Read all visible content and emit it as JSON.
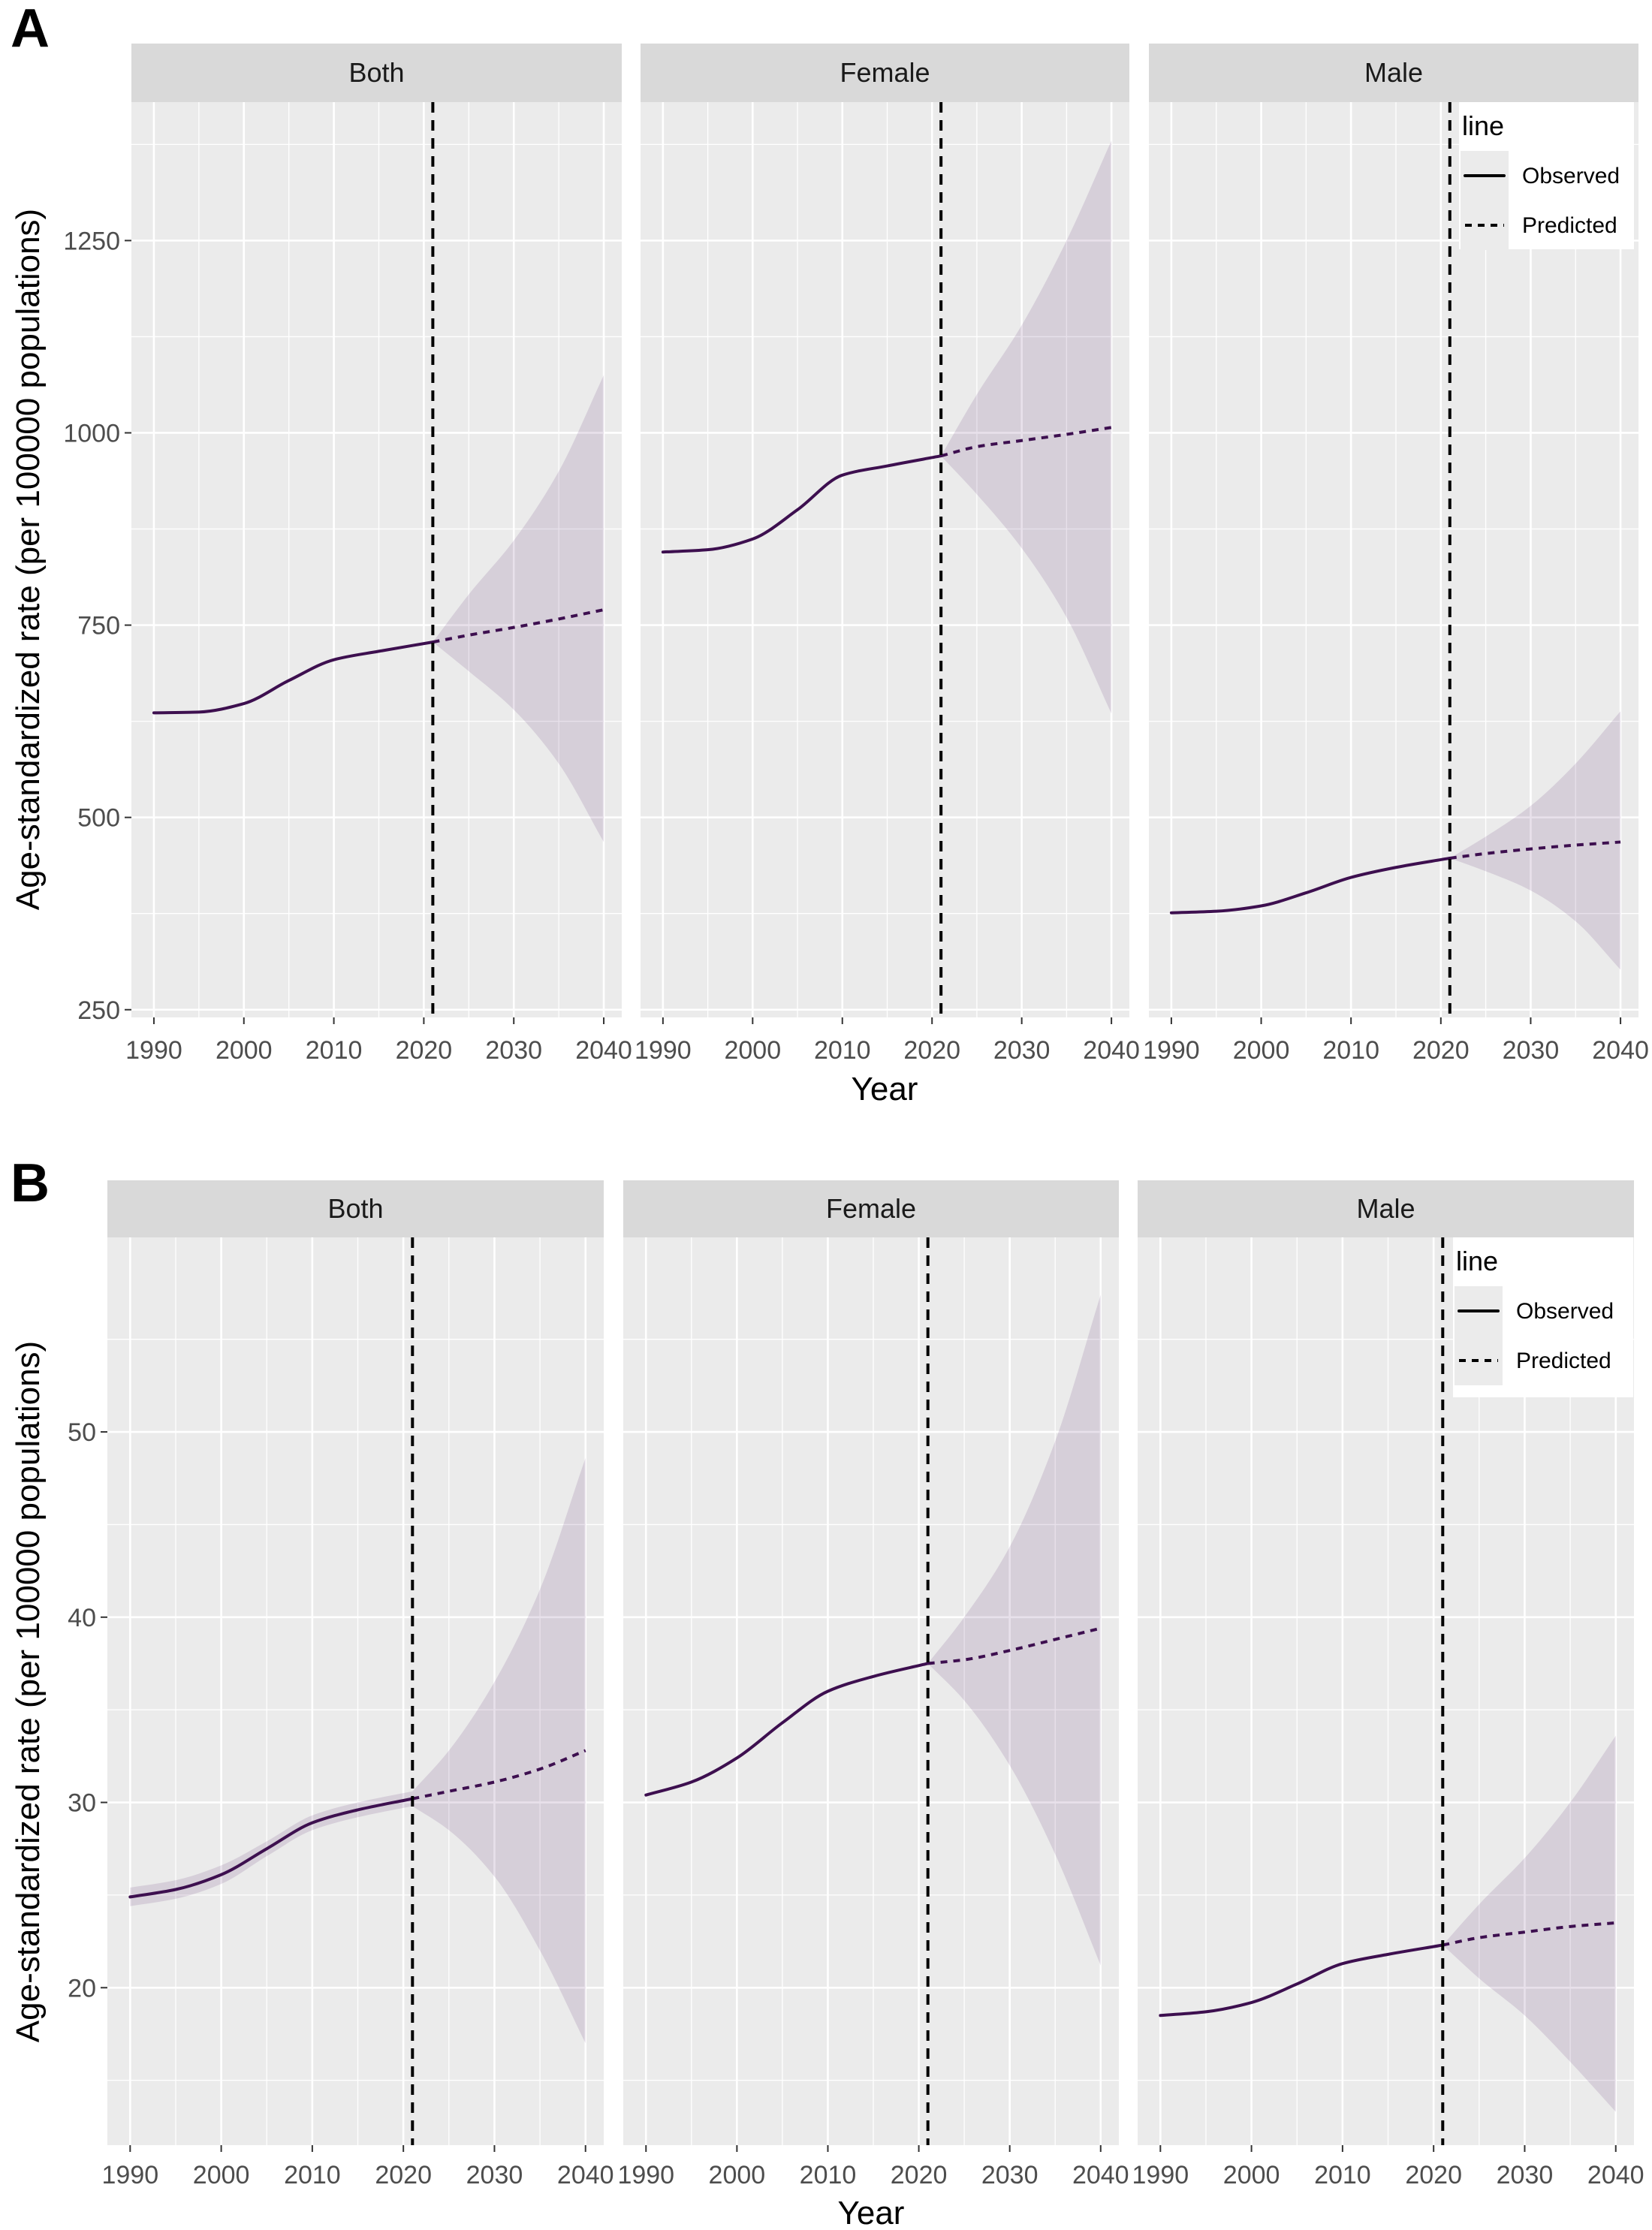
{
  "chart_data": [
    {
      "panel_label": "A",
      "type": "line",
      "xlabel": "Year",
      "ylabel": "Age-standardized rate (per 100000 populations)",
      "xlim": [
        1987.5,
        2042
      ],
      "ylim": [
        240,
        1430
      ],
      "xticks": [
        1990,
        2000,
        2010,
        2020,
        2030,
        2040
      ],
      "yticks": [
        250,
        500,
        750,
        1000,
        1250
      ],
      "reference_line_x": 2021,
      "legend": {
        "title": "line",
        "position": "top-right",
        "entries": [
          "Observed",
          "Predicted"
        ]
      },
      "facets": [
        {
          "name": "Both",
          "observed": {
            "x": [
              1990,
              1995,
              2000,
              2005,
              2010,
              2015,
              2021
            ],
            "y": [
              636,
              637,
              648,
              678,
              705,
              716,
              728
            ]
          },
          "predicted": {
            "x": [
              2021,
              2025,
              2030,
              2035,
              2040
            ],
            "y": [
              728,
              737,
              747,
              758,
              770
            ]
          },
          "band_upper": {
            "x": [
              2021,
              2025,
              2030,
              2035,
              2040
            ],
            "y": [
              728,
              790,
              860,
              950,
              1075
            ]
          },
          "band_lower": {
            "x": [
              2021,
              2025,
              2030,
              2035,
              2040
            ],
            "y": [
              728,
              690,
              640,
              570,
              468
            ]
          }
        },
        {
          "name": "Female",
          "observed": {
            "x": [
              1990,
              1995,
              2000,
              2005,
              2010,
              2015,
              2021
            ],
            "y": [
              845,
              848,
              862,
              900,
              945,
              957,
              970
            ]
          },
          "predicted": {
            "x": [
              2021,
              2025,
              2030,
              2035,
              2040
            ],
            "y": [
              970,
              982,
              990,
              998,
              1007
            ]
          },
          "band_upper": {
            "x": [
              2021,
              2025,
              2030,
              2035,
              2040
            ],
            "y": [
              970,
              1050,
              1140,
              1250,
              1380
            ]
          },
          "band_lower": {
            "x": [
              2021,
              2025,
              2030,
              2035,
              2040
            ],
            "y": [
              970,
              920,
              850,
              760,
              635
            ]
          }
        },
        {
          "name": "Male",
          "observed": {
            "x": [
              1990,
              1995,
              2000,
              2005,
              2010,
              2015,
              2021
            ],
            "y": [
              376,
              378,
              385,
              402,
              422,
              435,
              447
            ]
          },
          "predicted": {
            "x": [
              2021,
              2025,
              2030,
              2035,
              2040
            ],
            "y": [
              447,
              453,
              459,
              464,
              468
            ]
          },
          "band_upper": {
            "x": [
              2021,
              2025,
              2030,
              2035,
              2040
            ],
            "y": [
              447,
              475,
              515,
              570,
              638
            ]
          },
          "band_lower": {
            "x": [
              2021,
              2025,
              2030,
              2035,
              2040
            ],
            "y": [
              447,
              430,
              405,
              365,
              302
            ]
          }
        }
      ]
    },
    {
      "panel_label": "B",
      "type": "line",
      "xlabel": "Year",
      "ylabel": "Age-standardized rate (per 100000 populations)",
      "xlim": [
        1987.5,
        2042
      ],
      "ylim": [
        11.5,
        60.5
      ],
      "xticks": [
        1990,
        2000,
        2010,
        2020,
        2030,
        2040
      ],
      "yticks": [
        20,
        30,
        40,
        50
      ],
      "reference_line_x": 2021,
      "legend": {
        "title": "line",
        "position": "top-right",
        "entries": [
          "Observed",
          "Predicted"
        ]
      },
      "facets": [
        {
          "name": "Both",
          "observed": {
            "x": [
              1990,
              1995,
              2000,
              2005,
              2010,
              2015,
              2021
            ],
            "y": [
              24.9,
              25.3,
              26.1,
              27.5,
              28.9,
              29.6,
              30.2
            ]
          },
          "observed_band_upper": {
            "x": [
              1990,
              1995,
              2000,
              2005,
              2010,
              2015,
              2021
            ],
            "y": [
              25.4,
              25.8,
              26.6,
              27.9,
              29.3,
              30.0,
              30.6
            ]
          },
          "observed_band_lower": {
            "x": [
              1990,
              1995,
              2000,
              2005,
              2010,
              2015,
              2021
            ],
            "y": [
              24.4,
              24.8,
              25.6,
              27.1,
              28.5,
              29.2,
              29.8
            ]
          },
          "predicted": {
            "x": [
              2021,
              2025,
              2030,
              2035,
              2040
            ],
            "y": [
              30.2,
              30.6,
              31.1,
              31.8,
              32.8
            ]
          },
          "band_upper": {
            "x": [
              2021,
              2025,
              2030,
              2035,
              2040
            ],
            "y": [
              30.6,
              32.8,
              36.5,
              41.5,
              48.6
            ]
          },
          "band_lower": {
            "x": [
              2021,
              2025,
              2030,
              2035,
              2040
            ],
            "y": [
              29.8,
              28.5,
              26.0,
              22.0,
              17.0
            ]
          }
        },
        {
          "name": "Female",
          "observed": {
            "x": [
              1990,
              1995,
              2000,
              2005,
              2010,
              2015,
              2021
            ],
            "y": [
              30.4,
              31.1,
              32.4,
              34.3,
              36.0,
              36.8,
              37.5
            ]
          },
          "predicted": {
            "x": [
              2021,
              2025,
              2030,
              2035,
              2040
            ],
            "y": [
              37.5,
              37.7,
              38.2,
              38.8,
              39.4
            ]
          },
          "band_upper": {
            "x": [
              2021,
              2025,
              2030,
              2035,
              2040
            ],
            "y": [
              37.5,
              40.0,
              43.8,
              49.5,
              57.4
            ]
          },
          "band_lower": {
            "x": [
              2021,
              2025,
              2030,
              2035,
              2040
            ],
            "y": [
              37.5,
              35.5,
              32.0,
              27.2,
              21.2
            ]
          }
        },
        {
          "name": "Male",
          "observed": {
            "x": [
              1990,
              1995,
              2000,
              2005,
              2010,
              2015,
              2021
            ],
            "y": [
              18.5,
              18.7,
              19.2,
              20.2,
              21.3,
              21.8,
              22.3
            ]
          },
          "predicted": {
            "x": [
              2021,
              2025,
              2030,
              2035,
              2040
            ],
            "y": [
              22.3,
              22.7,
              23.0,
              23.3,
              23.5
            ]
          },
          "band_upper": {
            "x": [
              2021,
              2025,
              2030,
              2035,
              2040
            ],
            "y": [
              22.3,
              24.5,
              27.0,
              30.0,
              33.6
            ]
          },
          "band_lower": {
            "x": [
              2021,
              2025,
              2030,
              2035,
              2040
            ],
            "y": [
              22.3,
              20.5,
              18.5,
              16.0,
              13.3
            ]
          }
        }
      ]
    }
  ]
}
